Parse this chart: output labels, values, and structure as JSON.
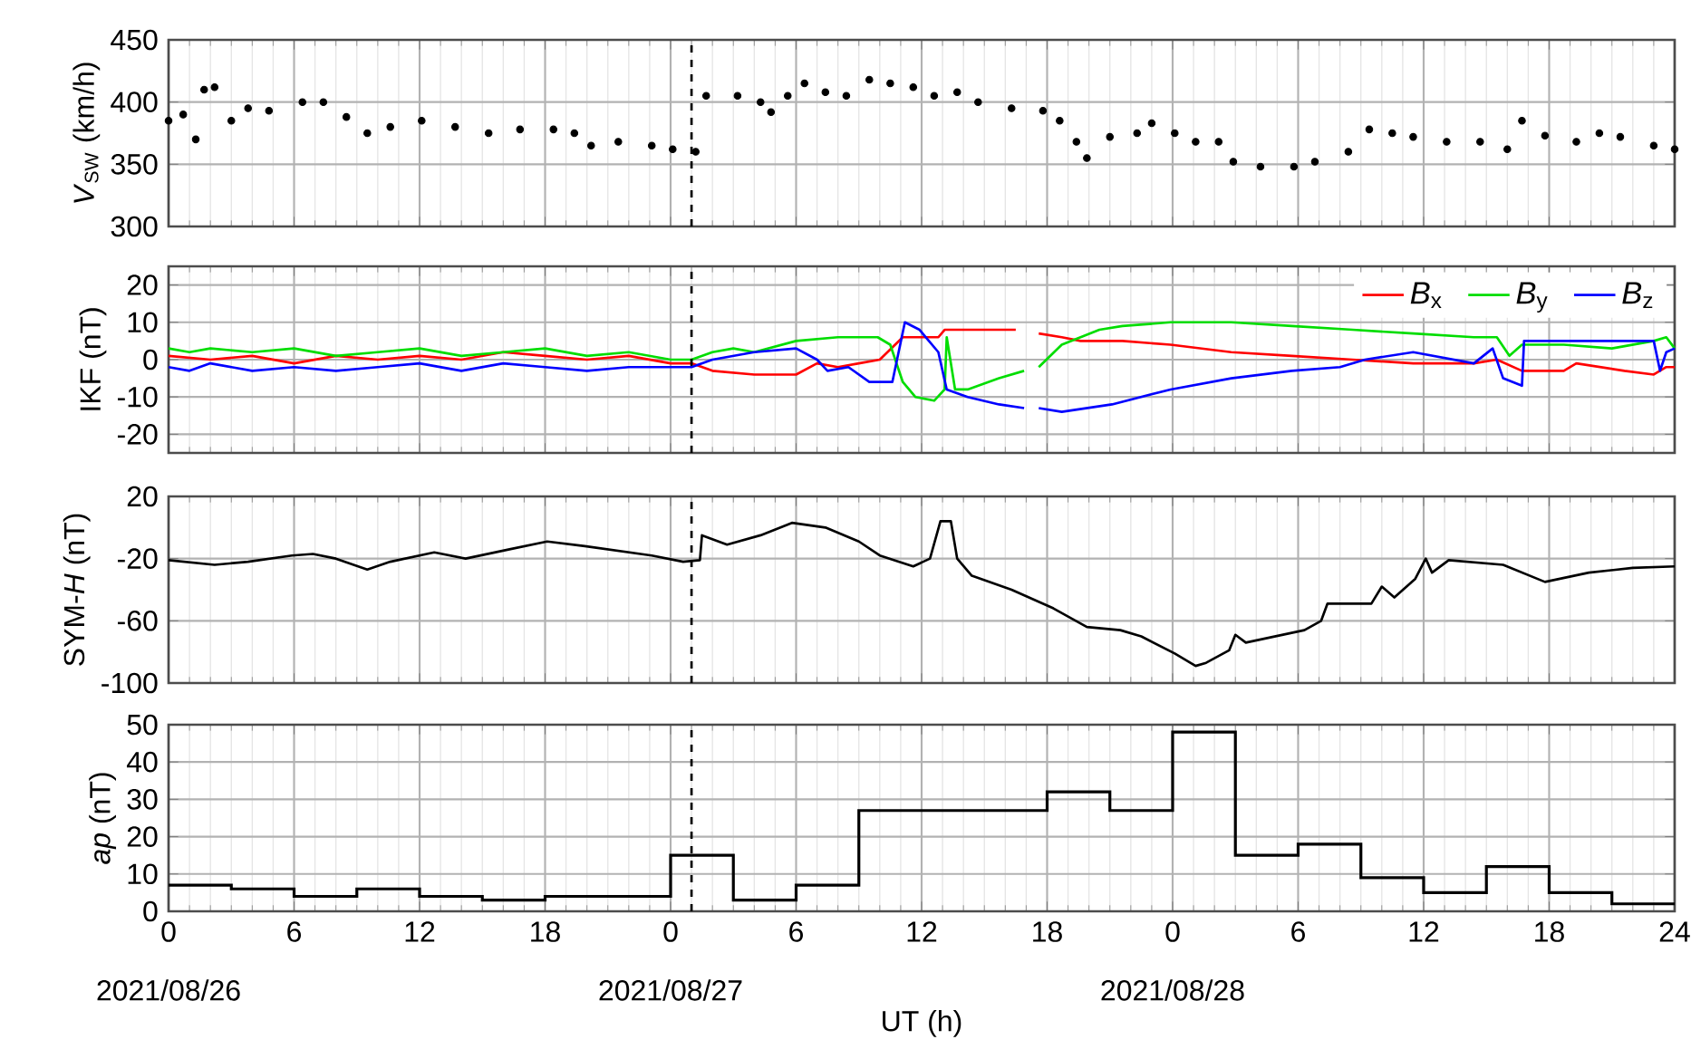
{
  "chart_data": [
    {
      "type": "scatter",
      "ylabel": "*V*$_{SW}$ (km/h)",
      "color": "#000000",
      "grid": true,
      "tick_labels": "y",
      "x": [
        "2021-08-26T00:00",
        "2021-08-26T00:42",
        "2021-08-26T01:18",
        "2021-08-26T01:42",
        "2021-08-26T02:12",
        "2021-08-26T03:00",
        "2021-08-26T03:48",
        "2021-08-26T04:48",
        "2021-08-26T06:24",
        "2021-08-26T07:24",
        "2021-08-26T08:30",
        "2021-08-26T09:30",
        "2021-08-26T10:36",
        "2021-08-26T12:06",
        "2021-08-26T13:42",
        "2021-08-26T15:18",
        "2021-08-26T16:48",
        "2021-08-26T18:24",
        "2021-08-26T19:24",
        "2021-08-26T20:12",
        "2021-08-26T21:30",
        "2021-08-26T23:06",
        "2021-08-27T00:06",
        "2021-08-27T01:12",
        "2021-08-27T01:42",
        "2021-08-27T03:12",
        "2021-08-27T04:18",
        "2021-08-27T04:48",
        "2021-08-27T05:36",
        "2021-08-27T06:24",
        "2021-08-27T07:24",
        "2021-08-27T08:24",
        "2021-08-27T09:30",
        "2021-08-27T10:30",
        "2021-08-27T11:36",
        "2021-08-27T12:36",
        "2021-08-27T13:42",
        "2021-08-27T14:42",
        "2021-08-27T16:18",
        "2021-08-27T17:48",
        "2021-08-27T18:36",
        "2021-08-27T19:24",
        "2021-08-27T19:54",
        "2021-08-27T21:00",
        "2021-08-27T22:18",
        "2021-08-27T23:00",
        "2021-08-28T00:06",
        "2021-08-28T01:06",
        "2021-08-28T02:12",
        "2021-08-28T02:54",
        "2021-08-28T04:12",
        "2021-08-28T05:48",
        "2021-08-28T06:48",
        "2021-08-28T08:24",
        "2021-08-28T09:24",
        "2021-08-28T10:30",
        "2021-08-28T11:30",
        "2021-08-28T13:06",
        "2021-08-28T14:42",
        "2021-08-28T16:00",
        "2021-08-28T16:42",
        "2021-08-28T17:48",
        "2021-08-28T19:18",
        "2021-08-28T20:24",
        "2021-08-28T21:24",
        "2021-08-28T23:00",
        "2021-08-29T00:00"
      ],
      "values": [
        385,
        390,
        370,
        410,
        412,
        385,
        395,
        393,
        400,
        400,
        388,
        375,
        380,
        385,
        380,
        375,
        378,
        378,
        375,
        365,
        368,
        365,
        362,
        360,
        405,
        405,
        400,
        392,
        405,
        415,
        408,
        405,
        418,
        415,
        412,
        405,
        408,
        400,
        395,
        393,
        385,
        368,
        355,
        372,
        375,
        383,
        375,
        368,
        368,
        352,
        348,
        348,
        352,
        360,
        378,
        375,
        372,
        368,
        368,
        362,
        385,
        373,
        368,
        375,
        372,
        365,
        362
      ],
      "xlim": [
        "2021-08-26T00:00",
        "2021-08-29T00:00"
      ],
      "ylim": [
        300,
        450
      ],
      "yticks": [
        300,
        350,
        400,
        450
      ],
      "xticks": [
        {
          "value": "2021-08-26T00:00",
          "label": null
        },
        {
          "value": "2021-08-26T06:00",
          "label": null
        },
        {
          "value": "2021-08-26T12:00",
          "label": null
        },
        {
          "value": "2021-08-26T18:00",
          "label": null
        },
        {
          "value": "2021-08-27T00:00",
          "label": null
        },
        {
          "value": "2021-08-27T06:00",
          "label": null
        },
        {
          "value": "2021-08-27T12:00",
          "label": null
        },
        {
          "value": "2021-08-27T18:00",
          "label": null
        },
        {
          "value": "2021-08-28T00:00",
          "label": null
        },
        {
          "value": "2021-08-28T06:00",
          "label": null
        },
        {
          "value": "2021-08-28T12:00",
          "label": null
        },
        {
          "value": "2021-08-28T18:00",
          "label": null
        },
        {
          "value": "2021-08-29T00:00",
          "label": null
        }
      ],
      "ref_lines": [
        {
          "axis": "x",
          "value": "2021-08-27T01:00",
          "line_style": "dashed",
          "color": "#000000"
        }
      ]
    },
    {
      "type": "line",
      "ylabel": "IKF (nT)",
      "grid": true,
      "tick_labels": "y",
      "legend": "top right",
      "series": [
        {
          "name": "*B*$_{x}$",
          "color": "#ff0000",
          "x": [
            "2021-08-26T00:00",
            "2021-08-26T02:00",
            "2021-08-26T04:00",
            "2021-08-26T06:00",
            "2021-08-26T08:00",
            "2021-08-26T10:00",
            "2021-08-26T12:00",
            "2021-08-26T14:00",
            "2021-08-26T16:00",
            "2021-08-26T18:00",
            "2021-08-26T20:00",
            "2021-08-26T22:00",
            "2021-08-27T00:00",
            "2021-08-27T01:00",
            "2021-08-27T02:00",
            "2021-08-27T04:00",
            "2021-08-27T06:00",
            "2021-08-27T07:00",
            "2021-08-27T08:00",
            "2021-08-27T09:00",
            "2021-08-27T10:00",
            "2021-08-27T11:06",
            "2021-08-27T12:48",
            "2021-08-27T13:06",
            "2021-08-27T14:00",
            "2021-08-27T16:30",
            "2021-08-27T17:00",
            "2021-08-27T17:36",
            "2021-08-27T18:42",
            "2021-08-27T19:36",
            "2021-08-27T21:36",
            "2021-08-27T23:54",
            "2021-08-28T02:48",
            "2021-08-28T05:42",
            "2021-08-28T08:36",
            "2021-08-28T11:30",
            "2021-08-28T14:24",
            "2021-08-28T15:30",
            "2021-08-28T16:42",
            "2021-08-28T18:42",
            "2021-08-28T19:18",
            "2021-08-28T21:36",
            "2021-08-28T23:00",
            "2021-08-28T23:36",
            "2021-08-29T00:00"
          ],
          "values": [
            1,
            0,
            1,
            -1,
            1,
            0,
            1,
            0,
            2,
            1,
            0,
            1,
            -1,
            -1,
            -3,
            -4,
            -4,
            -1,
            -2,
            -1,
            0,
            6,
            6,
            8,
            8,
            8,
            null,
            7,
            6,
            5,
            5,
            4,
            2,
            1,
            0,
            -1,
            -1,
            0,
            -3,
            -3,
            -1,
            -3,
            -4,
            -2,
            -2
          ]
        },
        {
          "name": "*B*$_{y}$",
          "color": "#00dd00",
          "x": [
            "2021-08-26T00:00",
            "2021-08-26T01:00",
            "2021-08-26T02:00",
            "2021-08-26T04:00",
            "2021-08-26T06:00",
            "2021-08-26T08:00",
            "2021-08-26T10:00",
            "2021-08-26T12:00",
            "2021-08-26T14:00",
            "2021-08-26T16:00",
            "2021-08-26T18:00",
            "2021-08-26T20:00",
            "2021-08-26T22:00",
            "2021-08-27T00:00",
            "2021-08-27T01:00",
            "2021-08-27T02:00",
            "2021-08-27T03:00",
            "2021-08-27T04:00",
            "2021-08-27T06:00",
            "2021-08-27T08:00",
            "2021-08-27T09:54",
            "2021-08-27T10:30",
            "2021-08-27T11:06",
            "2021-08-27T11:42",
            "2021-08-27T12:36",
            "2021-08-27T13:06",
            "2021-08-27T13:12",
            "2021-08-27T13:36",
            "2021-08-27T14:12",
            "2021-08-27T15:42",
            "2021-08-27T16:54",
            "2021-08-27T17:00",
            "2021-08-27T17:36",
            "2021-08-27T18:42",
            "2021-08-27T20:30",
            "2021-08-27T21:36",
            "2021-08-27T23:54",
            "2021-08-28T02:48",
            "2021-08-28T05:42",
            "2021-08-28T08:36",
            "2021-08-28T11:30",
            "2021-08-28T14:24",
            "2021-08-28T15:30",
            "2021-08-28T16:06",
            "2021-08-28T16:42",
            "2021-08-28T18:42",
            "2021-08-28T21:00",
            "2021-08-28T23:00",
            "2021-08-28T23:36",
            "2021-08-29T00:00"
          ],
          "values": [
            3,
            2,
            3,
            2,
            3,
            1,
            2,
            3,
            1,
            2,
            3,
            1,
            2,
            0,
            0,
            2,
            3,
            2,
            5,
            6,
            6,
            4,
            -6,
            -10,
            -11,
            -8,
            6,
            -8,
            -8,
            -5,
            -3,
            null,
            -2,
            4,
            8,
            9,
            10,
            10,
            9,
            8,
            7,
            6,
            6,
            1,
            4,
            4,
            3,
            5,
            6,
            3
          ]
        },
        {
          "name": "*B*$_{z}$",
          "color": "#0000ff",
          "x": [
            "2021-08-26T00:00",
            "2021-08-26T01:00",
            "2021-08-26T02:00",
            "2021-08-26T04:00",
            "2021-08-26T06:00",
            "2021-08-26T08:00",
            "2021-08-26T10:00",
            "2021-08-26T12:00",
            "2021-08-26T14:00",
            "2021-08-26T16:00",
            "2021-08-26T18:00",
            "2021-08-26T20:00",
            "2021-08-26T22:00",
            "2021-08-27T00:00",
            "2021-08-27T01:00",
            "2021-08-27T02:00",
            "2021-08-27T04:00",
            "2021-08-27T06:00",
            "2021-08-27T07:00",
            "2021-08-27T07:30",
            "2021-08-27T08:30",
            "2021-08-27T09:30",
            "2021-08-27T10:36",
            "2021-08-27T11:12",
            "2021-08-27T11:54",
            "2021-08-27T12:48",
            "2021-08-27T13:12",
            "2021-08-27T14:12",
            "2021-08-27T15:42",
            "2021-08-27T16:54",
            "2021-08-27T17:00",
            "2021-08-27T17:36",
            "2021-08-27T18:42",
            "2021-08-27T21:06",
            "2021-08-27T23:54",
            "2021-08-28T02:48",
            "2021-08-28T05:42",
            "2021-08-28T08:00",
            "2021-08-28T09:12",
            "2021-08-28T11:30",
            "2021-08-28T14:24",
            "2021-08-28T15:18",
            "2021-08-28T15:48",
            "2021-08-28T16:42",
            "2021-08-28T16:48",
            "2021-08-28T18:42",
            "2021-08-28T23:00",
            "2021-08-28T23:18",
            "2021-08-28T23:36",
            "2021-08-29T00:00"
          ],
          "values": [
            -2,
            -3,
            -1,
            -3,
            -2,
            -3,
            -2,
            -1,
            -3,
            -1,
            -2,
            -3,
            -2,
            -2,
            -2,
            0,
            2,
            3,
            0,
            -3,
            -2,
            -6,
            -6,
            10,
            8,
            2,
            -8,
            -10,
            -12,
            -13,
            null,
            -13,
            -14,
            -12,
            -8,
            -5,
            -3,
            -2,
            0,
            2,
            -1,
            3,
            -5,
            -7,
            5,
            5,
            5,
            -3,
            2,
            3
          ]
        }
      ],
      "xlim": [
        "2021-08-26T00:00",
        "2021-08-29T00:00"
      ],
      "ylim": [
        -25,
        25
      ],
      "yticks": [
        -20,
        -10,
        0,
        10,
        20
      ],
      "xticks": [
        {
          "value": "2021-08-26T00:00",
          "label": null
        },
        {
          "value": "2021-08-26T06:00",
          "label": null
        },
        {
          "value": "2021-08-26T12:00",
          "label": null
        },
        {
          "value": "2021-08-26T18:00",
          "label": null
        },
        {
          "value": "2021-08-27T00:00",
          "label": null
        },
        {
          "value": "2021-08-27T06:00",
          "label": null
        },
        {
          "value": "2021-08-27T12:00",
          "label": null
        },
        {
          "value": "2021-08-27T18:00",
          "label": null
        },
        {
          "value": "2021-08-28T00:00",
          "label": null
        },
        {
          "value": "2021-08-28T06:00",
          "label": null
        },
        {
          "value": "2021-08-28T12:00",
          "label": null
        },
        {
          "value": "2021-08-28T18:00",
          "label": null
        },
        {
          "value": "2021-08-29T00:00",
          "label": null
        }
      ],
      "ref_lines": [
        {
          "axis": "x",
          "value": "2021-08-27T01:00",
          "line_style": "dashed",
          "color": "#000000"
        }
      ]
    },
    {
      "type": "line",
      "ylabel": "SYM-*H* (nT)",
      "color": "#000000",
      "grid": true,
      "tick_labels": "y",
      "x": [
        "2021-08-26T00:00",
        "2021-08-26T02:12",
        "2021-08-26T03:48",
        "2021-08-26T05:54",
        "2021-08-26T06:54",
        "2021-08-26T08:00",
        "2021-08-26T09:30",
        "2021-08-26T10:36",
        "2021-08-26T12:42",
        "2021-08-26T14:12",
        "2021-08-26T16:18",
        "2021-08-26T18:06",
        "2021-08-26T19:54",
        "2021-08-26T23:06",
        "2021-08-27T00:36",
        "2021-08-27T01:24",
        "2021-08-27T01:30",
        "2021-08-27T02:42",
        "2021-08-27T04:18",
        "2021-08-27T05:48",
        "2021-08-27T07:24",
        "2021-08-27T09:00",
        "2021-08-27T10:00",
        "2021-08-27T11:36",
        "2021-08-27T12:24",
        "2021-08-27T12:54",
        "2021-08-27T13:24",
        "2021-08-27T13:42",
        "2021-08-27T14:24",
        "2021-08-27T16:18",
        "2021-08-27T18:18",
        "2021-08-27T19:54",
        "2021-08-27T21:30",
        "2021-08-27T22:30",
        "2021-08-28T00:06",
        "2021-08-28T01:06",
        "2021-08-28T01:36",
        "2021-08-28T02:42",
        "2021-08-28T03:00",
        "2021-08-28T03:30",
        "2021-08-28T06:18",
        "2021-08-28T07:06",
        "2021-08-28T07:24",
        "2021-08-28T09:30",
        "2021-08-28T10:00",
        "2021-08-28T10:36",
        "2021-08-28T11:36",
        "2021-08-28T12:06",
        "2021-08-28T12:24",
        "2021-08-28T13:12",
        "2021-08-28T15:48",
        "2021-08-28T17:48",
        "2021-08-28T19:54",
        "2021-08-28T22:00",
        "2021-08-29T00:00"
      ],
      "values": [
        -21,
        -24,
        -22,
        -18,
        -17,
        -20,
        -27,
        -22,
        -16,
        -20,
        -14,
        -9,
        -12,
        -18,
        -22,
        -21,
        -5,
        -11,
        -5,
        3,
        0,
        -9,
        -18,
        -25,
        -20,
        4,
        4,
        -20,
        -31,
        -40,
        -52,
        -64,
        -66,
        -70,
        -81,
        -89,
        -87,
        -79,
        -69,
        -74,
        -66,
        -60,
        -49,
        -49,
        -38,
        -45,
        -33,
        -20,
        -29,
        -21,
        -24,
        -35,
        -29,
        -26,
        -25
      ],
      "xlim": [
        "2021-08-26T00:00",
        "2021-08-29T00:00"
      ],
      "ylim": [
        -100,
        20
      ],
      "yticks": [
        -100,
        -60,
        -20,
        20
      ],
      "xticks": [
        {
          "value": "2021-08-26T00:00",
          "label": null
        },
        {
          "value": "2021-08-26T06:00",
          "label": null
        },
        {
          "value": "2021-08-26T12:00",
          "label": null
        },
        {
          "value": "2021-08-26T18:00",
          "label": null
        },
        {
          "value": "2021-08-27T00:00",
          "label": null
        },
        {
          "value": "2021-08-27T06:00",
          "label": null
        },
        {
          "value": "2021-08-27T12:00",
          "label": null
        },
        {
          "value": "2021-08-27T18:00",
          "label": null
        },
        {
          "value": "2021-08-28T00:00",
          "label": null
        },
        {
          "value": "2021-08-28T06:00",
          "label": null
        },
        {
          "value": "2021-08-28T12:00",
          "label": null
        },
        {
          "value": "2021-08-28T18:00",
          "label": null
        },
        {
          "value": "2021-08-29T00:00",
          "label": null
        }
      ],
      "ref_lines": [
        {
          "axis": "x",
          "value": "2021-08-27T01:00",
          "line_style": "dashed",
          "color": "#000000"
        }
      ]
    },
    {
      "type": "step",
      "ylabel": "*ap* (nT)",
      "xlabel": "UT (h)",
      "color": "#000000",
      "grid": true,
      "x": [
        "2021-08-26T00:00",
        "2021-08-26T03:00",
        "2021-08-26T06:00",
        "2021-08-26T09:00",
        "2021-08-26T12:00",
        "2021-08-26T15:00",
        "2021-08-26T18:00",
        "2021-08-26T21:00",
        "2021-08-27T00:00",
        "2021-08-27T03:00",
        "2021-08-27T06:00",
        "2021-08-27T09:00",
        "2021-08-27T12:00",
        "2021-08-27T15:00",
        "2021-08-27T18:00",
        "2021-08-27T21:00",
        "2021-08-28T00:00",
        "2021-08-28T03:00",
        "2021-08-28T06:00",
        "2021-08-28T09:00",
        "2021-08-28T12:00",
        "2021-08-28T15:00",
        "2021-08-28T18:00",
        "2021-08-28T21:00",
        "2021-08-29T00:00"
      ],
      "values": [
        7,
        6,
        4,
        6,
        4,
        3,
        4,
        4,
        15,
        3,
        7,
        27,
        27,
        27,
        32,
        27,
        48,
        15,
        18,
        9,
        5,
        12,
        5,
        2,
        2
      ],
      "xlim": [
        "2021-08-26T00:00",
        "2021-08-29T00:00"
      ],
      "ylim": [
        0,
        50
      ],
      "yticks": [
        0,
        10,
        20,
        30,
        40,
        50
      ],
      "xticks": [
        {
          "value": "2021-08-26T00:00",
          "label": "0"
        },
        {
          "value": "2021-08-26T06:00",
          "label": "6"
        },
        {
          "value": "2021-08-26T12:00",
          "label": "12"
        },
        {
          "value": "2021-08-26T18:00",
          "label": "18"
        },
        {
          "value": "2021-08-27T00:00",
          "label": "0"
        },
        {
          "value": "2021-08-27T06:00",
          "label": "6"
        },
        {
          "value": "2021-08-27T12:00",
          "label": "12"
        },
        {
          "value": "2021-08-27T18:00",
          "label": "18"
        },
        {
          "value": "2021-08-28T00:00",
          "label": "0"
        },
        {
          "value": "2021-08-28T06:00",
          "label": "6"
        },
        {
          "value": "2021-08-28T12:00",
          "label": "12"
        },
        {
          "value": "2021-08-28T18:00",
          "label": "18"
        },
        {
          "value": "2021-08-29T00:00",
          "label": "24"
        }
      ],
      "annotations": [
        "2021/08/26",
        "2021/08/27",
        "2021/08/28"
      ],
      "ref_lines": [
        {
          "axis": "x",
          "value": "2021-08-27T01:00",
          "line_style": "dashed",
          "color": "#000000"
        }
      ]
    }
  ]
}
